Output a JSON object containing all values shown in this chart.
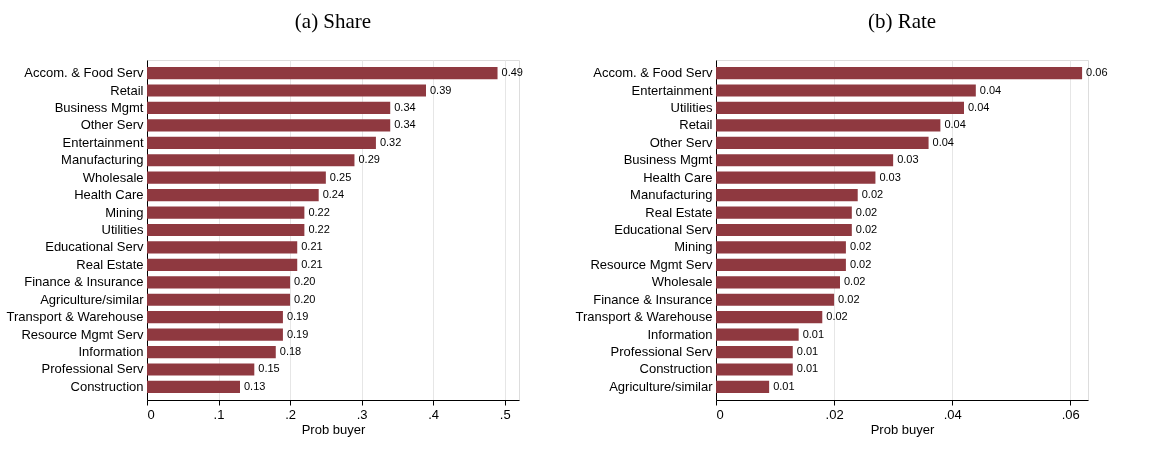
{
  "chart_data": [
    {
      "type": "bar",
      "orientation": "horizontal",
      "title": "(a) Share",
      "xlabel": "Prob buyer",
      "categories": [
        "Accom. & Food Serv",
        "Retail",
        "Business Mgmt",
        "Other Serv",
        "Entertainment",
        "Manufacturing",
        "Wholesale",
        "Health Care",
        "Mining",
        "Utilities",
        "Educational Serv",
        "Real Estate",
        "Finance & Insurance",
        "Agriculture/similar",
        "Transport & Warehouse",
        "Resource Mgmt Serv",
        "Information",
        "Professional Serv",
        "Construction"
      ],
      "values": [
        0.49,
        0.39,
        0.34,
        0.34,
        0.32,
        0.29,
        0.25,
        0.24,
        0.22,
        0.22,
        0.21,
        0.21,
        0.2,
        0.2,
        0.19,
        0.19,
        0.18,
        0.15,
        0.13
      ],
      "value_labels": [
        "0.49",
        "0.39",
        "0.34",
        "0.34",
        "0.32",
        "0.29",
        "0.25",
        "0.24",
        "0.22",
        "0.22",
        "0.21",
        "0.21",
        "0.20",
        "0.20",
        "0.19",
        "0.19",
        "0.18",
        "0.15",
        "0.13"
      ],
      "color": "#8f3940",
      "xlim": [
        0,
        0.52
      ],
      "xticks": [
        0,
        {
          "value": 0.1,
          "label": ".1"
        },
        {
          "value": 0.2,
          "label": ".2"
        },
        {
          "value": 0.3,
          "label": ".3"
        },
        {
          "value": 0.4,
          "label": ".4"
        },
        {
          "value": 0.5,
          "label": ".5"
        }
      ],
      "grid": "x"
    },
    {
      "type": "bar",
      "orientation": "horizontal",
      "title": "(b) Rate",
      "xlabel": "Prob buyer",
      "categories": [
        "Accom. & Food Serv",
        "Entertainment",
        "Utilities",
        "Retail",
        "Other Serv",
        "Business Mgmt",
        "Health Care",
        "Manufacturing",
        "Real Estate",
        "Educational Serv",
        "Mining",
        "Resource Mgmt Serv",
        "Wholesale",
        "Finance & Insurance",
        "Transport & Warehouse",
        "Information",
        "Professional Serv",
        "Construction",
        "Agriculture/similar"
      ],
      "values": [
        0.062,
        0.044,
        0.042,
        0.038,
        0.036,
        0.03,
        0.027,
        0.024,
        0.023,
        0.023,
        0.022,
        0.022,
        0.021,
        0.02,
        0.018,
        0.014,
        0.013,
        0.013,
        0.009
      ],
      "value_labels": [
        "0.06",
        "0.04",
        "0.04",
        "0.04",
        "0.04",
        "0.03",
        "0.03",
        "0.02",
        "0.02",
        "0.02",
        "0.02",
        "0.02",
        "0.02",
        "0.02",
        "0.02",
        "0.01",
        "0.01",
        "0.01",
        "0.01"
      ],
      "color": "#8f3940",
      "xlim": [
        0,
        0.063
      ],
      "xticks": [
        0,
        {
          "value": 0.02,
          "label": ".02"
        },
        {
          "value": 0.04,
          "label": ".04"
        },
        {
          "value": 0.06,
          "label": ".06"
        }
      ],
      "grid": "x"
    }
  ]
}
